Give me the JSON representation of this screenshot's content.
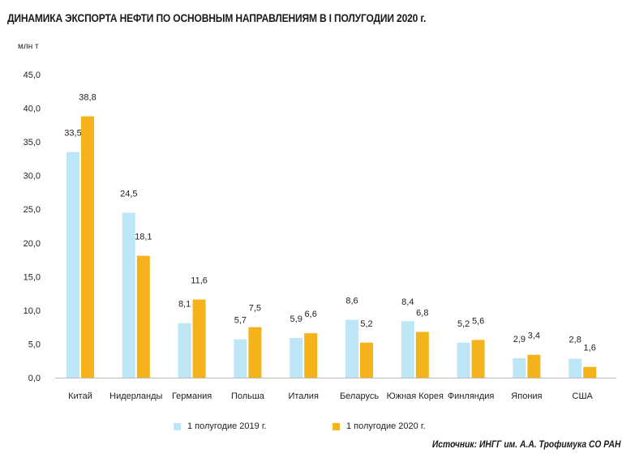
{
  "chart_data": {
    "type": "bar",
    "title": "ДИНАМИКА ЭКСПОРТА НЕФТИ ПО ОСНОВНЫМ НАПРАВЛЕНИЯМ В I ПОЛУГОДИИ 2020 г.",
    "unit": "млн т",
    "categories": [
      "Китай",
      "Нидерланды",
      "Германия",
      "Польша",
      "Италия",
      "Беларусь",
      "Южная Корея",
      "Финляндия",
      "Япония",
      "США"
    ],
    "series": [
      {
        "name": "1 полугодие 2019 г.",
        "color": "#bde7f7",
        "values": [
          33.5,
          24.5,
          8.1,
          5.7,
          5.9,
          8.6,
          8.4,
          5.2,
          2.9,
          2.8
        ],
        "labels": [
          "33,5",
          "24,5",
          "8,1",
          "5,7",
          "5,9",
          "8,6",
          "8,4",
          "5,2",
          "2,9",
          "2,8"
        ]
      },
      {
        "name": "1 полугодие 2020 г.",
        "color": "#f4b31b",
        "values": [
          38.8,
          18.1,
          11.6,
          7.5,
          6.6,
          5.2,
          6.8,
          5.6,
          3.4,
          1.6
        ],
        "labels": [
          "38,8",
          "18,1",
          "11,6",
          "7,5",
          "6,6",
          "5,2",
          "6,8",
          "5,6",
          "3,4",
          "1,6"
        ]
      }
    ],
    "ylim": [
      0,
      45
    ],
    "yticks": [
      "0,0",
      "5,0",
      "10,0",
      "15,0",
      "20,0",
      "25,0",
      "30,0",
      "35,0",
      "40,0",
      "45,0"
    ],
    "grid": false,
    "legend_position": "bottom",
    "source": "Источник: ИНГГ им. А.А. Трофимука СО РАН"
  }
}
